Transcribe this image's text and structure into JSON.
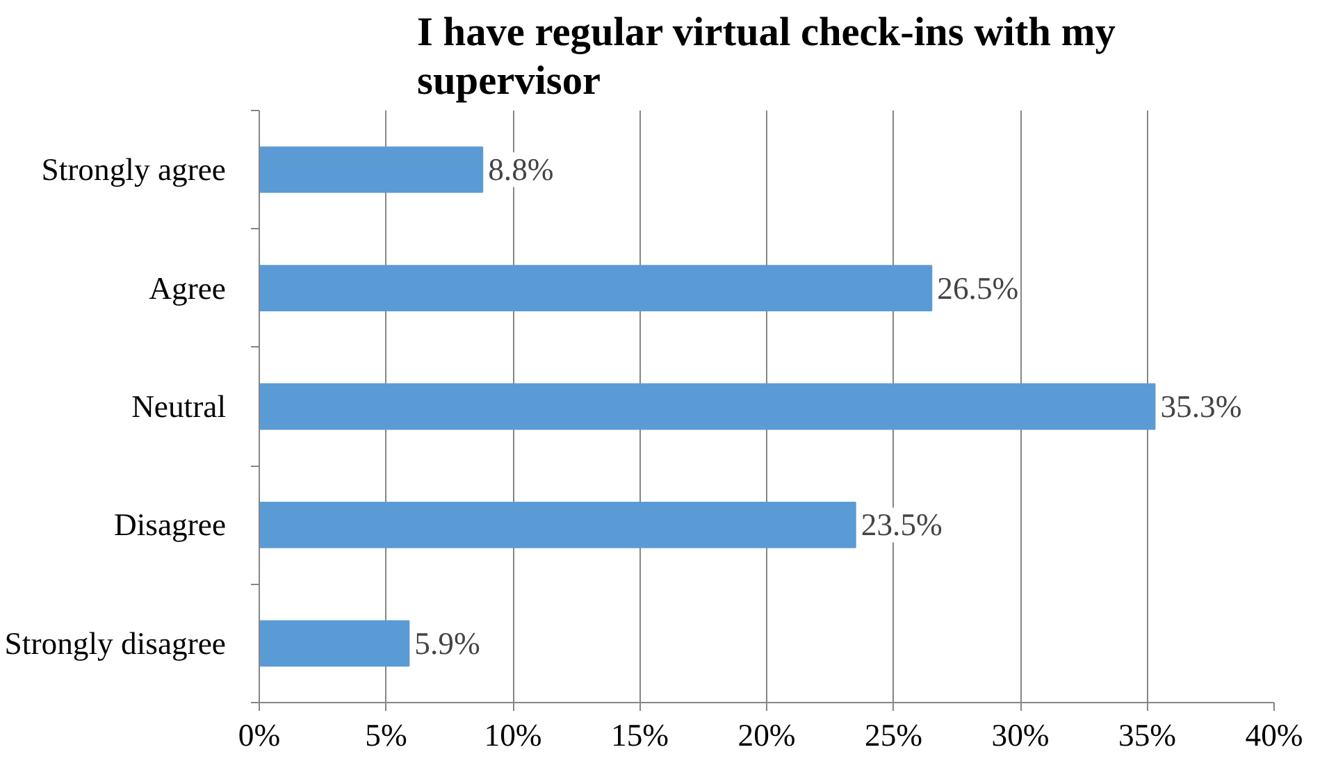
{
  "chart_data": {
    "type": "bar",
    "orientation": "horizontal",
    "title": "I have regular virtual check-ins with my supervisor",
    "categories": [
      "Strongly agree",
      "Agree",
      "Neutral",
      "Disagree",
      "Strongly disagree"
    ],
    "values": [
      8.8,
      26.5,
      35.3,
      23.5,
      5.9
    ],
    "value_labels": [
      "8.8%",
      "26.5%",
      "35.3%",
      "23.5%",
      "5.9%"
    ],
    "color": "#5b9bd5",
    "xlim": [
      0,
      40
    ],
    "xticks": [
      {
        "value": 0,
        "label": "0%"
      },
      {
        "value": 5,
        "label": "5%"
      },
      {
        "value": 10,
        "label": "10%"
      },
      {
        "value": 15,
        "label": "15%"
      },
      {
        "value": 20,
        "label": "20%"
      },
      {
        "value": 25,
        "label": "25%"
      },
      {
        "value": 30,
        "label": "30%"
      },
      {
        "value": 35,
        "label": "35%"
      },
      {
        "value": 40,
        "label": "40%"
      }
    ],
    "grid": "x"
  }
}
